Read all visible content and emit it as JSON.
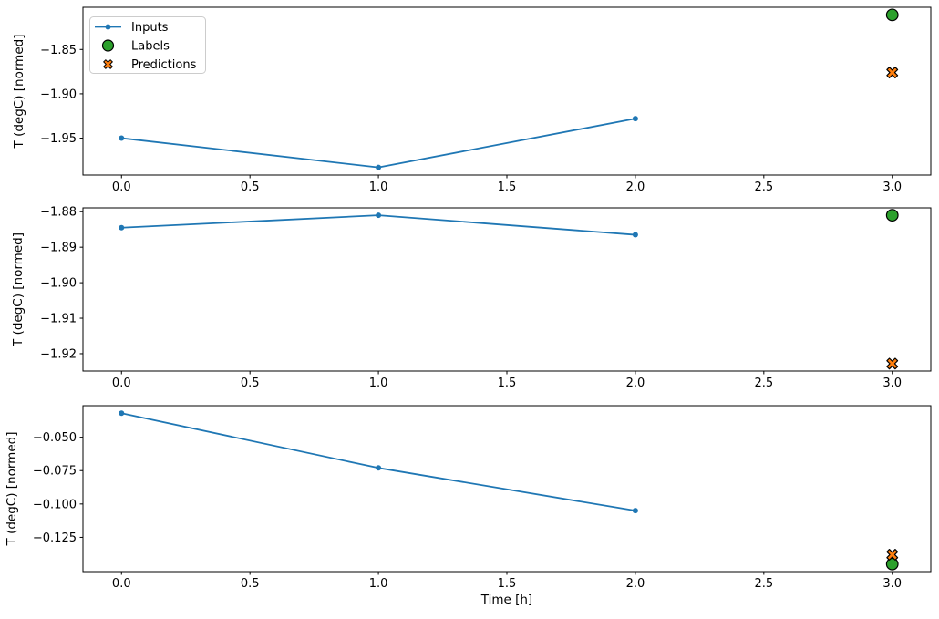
{
  "figure": {
    "xlabel": "Time [h]",
    "ylabel": "T (degC) [normed]",
    "background": "#ffffff",
    "legend": {
      "items": [
        {
          "label": "Inputs",
          "marker": "line-dot",
          "color": "#1f77b4"
        },
        {
          "label": "Labels",
          "marker": "circle",
          "color": "#2ca02c"
        },
        {
          "label": "Predictions",
          "marker": "x",
          "color": "#ff7f0e"
        }
      ]
    },
    "colors": {
      "inputs": "#1f77b4",
      "labels": "#2ca02c",
      "predictions": "#ff7f0e",
      "marker_edge": "#000000",
      "frame": "#000000",
      "legend_border": "#cccccc"
    }
  },
  "chart_data": [
    {
      "type": "line",
      "title": "",
      "xlabel": "",
      "ylabel": "T (degC) [normed]",
      "xlim": [
        -0.15,
        3.15
      ],
      "grid": false,
      "legend_position": "upper left",
      "x_ticks": [
        0.0,
        0.5,
        1.0,
        1.5,
        2.0,
        2.5,
        3.0
      ],
      "x_tick_labels": [
        "0.0",
        "0.5",
        "1.0",
        "1.5",
        "2.0",
        "2.5",
        "3.0"
      ],
      "y_ticks": [
        -1.85,
        -1.9,
        -1.95
      ],
      "y_tick_labels": [
        "−1.85",
        "−1.90",
        "−1.95"
      ],
      "series": [
        {
          "name": "Inputs",
          "style": "line+marker",
          "x": [
            0,
            1,
            2
          ],
          "y": [
            -1.95,
            -1.983,
            -1.928
          ]
        },
        {
          "name": "Labels",
          "style": "scatter-circle",
          "x": [
            3
          ],
          "y": [
            -1.811
          ]
        },
        {
          "name": "Predictions",
          "style": "scatter-x",
          "x": [
            3
          ],
          "y": [
            -1.876
          ]
        }
      ]
    },
    {
      "type": "line",
      "title": "",
      "xlabel": "",
      "ylabel": "T (degC) [normed]",
      "xlim": [
        -0.15,
        3.15
      ],
      "grid": false,
      "x_ticks": [
        0.0,
        0.5,
        1.0,
        1.5,
        2.0,
        2.5,
        3.0
      ],
      "x_tick_labels": [
        "0.0",
        "0.5",
        "1.0",
        "1.5",
        "2.0",
        "2.5",
        "3.0"
      ],
      "y_ticks": [
        -1.88,
        -1.89,
        -1.9,
        -1.91,
        -1.92
      ],
      "y_tick_labels": [
        "−1.88",
        "−1.89",
        "−1.90",
        "−1.91",
        "−1.92"
      ],
      "series": [
        {
          "name": "Inputs",
          "style": "line+marker",
          "x": [
            0,
            1,
            2
          ],
          "y": [
            -1.8845,
            -1.881,
            -1.8865
          ]
        },
        {
          "name": "Labels",
          "style": "scatter-circle",
          "x": [
            3
          ],
          "y": [
            -1.881
          ]
        },
        {
          "name": "Predictions",
          "style": "scatter-x",
          "x": [
            3
          ],
          "y": [
            -1.9228
          ]
        }
      ]
    },
    {
      "type": "line",
      "title": "",
      "xlabel": "Time [h]",
      "ylabel": "T (degC) [normed]",
      "xlim": [
        -0.15,
        3.15
      ],
      "grid": false,
      "x_ticks": [
        0.0,
        0.5,
        1.0,
        1.5,
        2.0,
        2.5,
        3.0
      ],
      "x_tick_labels": [
        "0.0",
        "0.5",
        "1.0",
        "1.5",
        "2.0",
        "2.5",
        "3.0"
      ],
      "y_ticks": [
        -0.05,
        -0.075,
        -0.1,
        -0.125
      ],
      "y_tick_labels": [
        "−0.050",
        "−0.075",
        "−0.100",
        "−0.125"
      ],
      "series": [
        {
          "name": "Inputs",
          "style": "line+marker",
          "x": [
            0,
            1,
            2
          ],
          "y": [
            -0.032,
            -0.073,
            -0.105
          ]
        },
        {
          "name": "Labels",
          "style": "scatter-circle",
          "x": [
            3
          ],
          "y": [
            -0.145
          ]
        },
        {
          "name": "Predictions",
          "style": "scatter-x",
          "x": [
            3
          ],
          "y": [
            -0.138
          ]
        }
      ]
    }
  ]
}
